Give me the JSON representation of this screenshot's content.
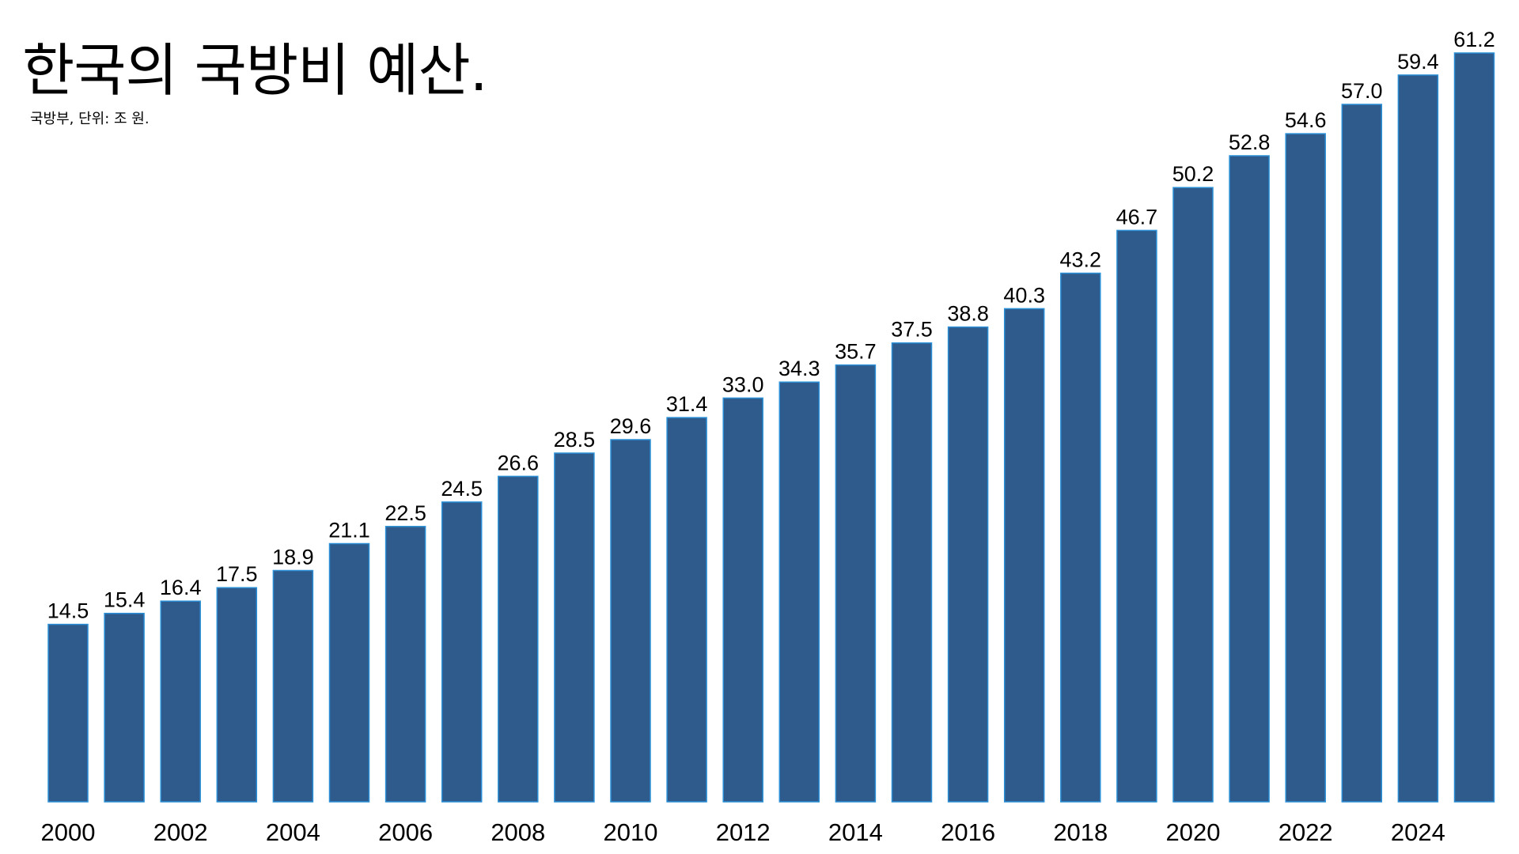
{
  "chart_data": {
    "type": "bar",
    "title": "한국의 국방비 예산.",
    "subtitle": "국방부, 단위: 조 원.",
    "categories": [
      "2000",
      "2001",
      "2002",
      "2003",
      "2004",
      "2005",
      "2006",
      "2007",
      "2008",
      "2009",
      "2010",
      "2011",
      "2012",
      "2013",
      "2014",
      "2015",
      "2016",
      "2017",
      "2018",
      "2019",
      "2020",
      "2021",
      "2022",
      "2023",
      "2024",
      "2025"
    ],
    "values": [
      14.5,
      15.4,
      16.4,
      17.5,
      18.9,
      21.1,
      22.5,
      24.5,
      26.6,
      28.5,
      29.6,
      31.4,
      33.0,
      34.3,
      35.7,
      37.5,
      38.8,
      40.3,
      43.2,
      46.7,
      50.2,
      52.8,
      54.6,
      57.0,
      59.4,
      61.2
    ],
    "value_labels": [
      "14.5",
      "15.4",
      "16.4",
      "17.5",
      "18.9",
      "21.1",
      "22.5",
      "24.5",
      "26.6",
      "28.5",
      "29.6",
      "31.4",
      "33.0",
      "34.3",
      "35.7",
      "37.5",
      "38.8",
      "40.3",
      "43.2",
      "46.7",
      "50.2",
      "52.8",
      "54.6",
      "57.0",
      "59.4",
      "61.2"
    ],
    "x_tick_labels": [
      "2000",
      "2002",
      "2004",
      "2006",
      "2008",
      "2010",
      "2012",
      "2014",
      "2016",
      "2018",
      "2020",
      "2022",
      "2024"
    ],
    "xlabel": "",
    "ylabel": "",
    "ylim": [
      0,
      61.2
    ],
    "grid": false,
    "bar_color": "#2e5a8c",
    "bar_edge_color": "#2a8fd6"
  }
}
